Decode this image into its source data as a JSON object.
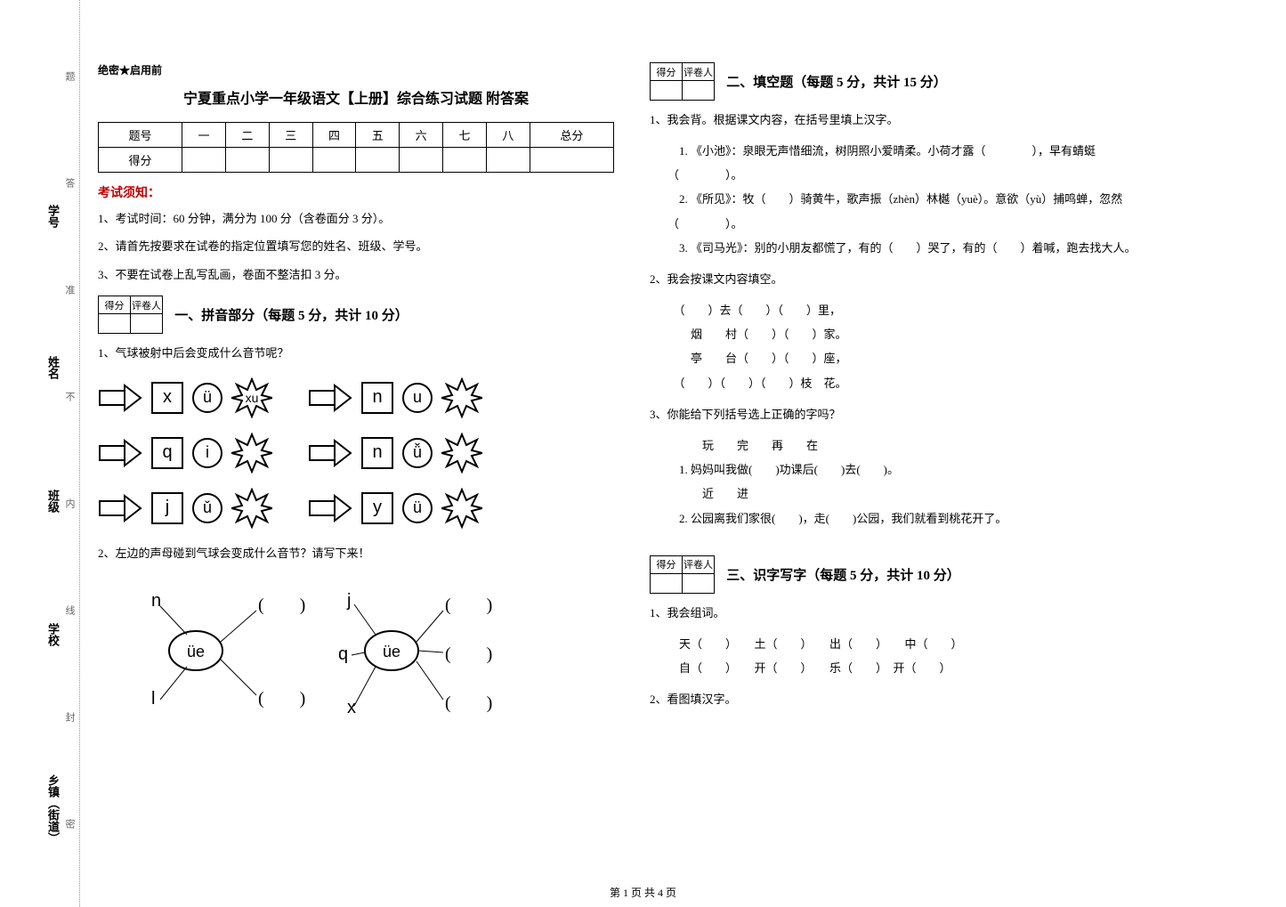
{
  "binding": {
    "labels": [
      "乡镇（街道）",
      "学校",
      "班级",
      "姓名",
      "学号"
    ],
    "hints": [
      "密",
      "封",
      "线",
      "内",
      "不",
      "准",
      "答",
      "题"
    ]
  },
  "secret": "绝密★启用前",
  "title": "宁夏重点小学一年级语文【上册】综合练习试题 附答案",
  "score_table": {
    "header": [
      "题号",
      "一",
      "二",
      "三",
      "四",
      "五",
      "六",
      "七",
      "八",
      "总分"
    ],
    "row_label": "得分"
  },
  "notice_head": "考试须知：",
  "notices": [
    "1、考试时间：60 分钟，满分为 100 分（含卷面分 3 分）。",
    "2、请首先按要求在试卷的指定位置填写您的姓名、班级、学号。",
    "3、不要在试卷上乱写乱画，卷面不整洁扣 3 分。"
  ],
  "scorebox_labels": [
    "得分",
    "评卷人"
  ],
  "sections": {
    "s1": {
      "title": "一、拼音部分（每题 5 分，共计 10 分）"
    },
    "s2": {
      "title": "二、填空题（每题 5 分，共计 15 分）"
    },
    "s3": {
      "title": "三、识字写字（每题 5 分，共计 10 分）"
    }
  },
  "s1": {
    "q1": "1、气球被射中后会变成什么音节呢？",
    "rows": [
      {
        "left": "x",
        "circle": "ü",
        "mid": "xu",
        "right_arrow_letter": "n",
        "right_circle": "u"
      },
      {
        "left": "q",
        "circle": "i",
        "mid": "",
        "right_arrow_letter": "n",
        "right_circle": "ǚ"
      },
      {
        "left": "j",
        "circle": "ǔ",
        "mid": "",
        "right_arrow_letter": "y",
        "right_circle": "ü"
      }
    ],
    "q2": "2、左边的声母碰到气球会变成什么音节？请写下来！",
    "d2": {
      "left_top": "n",
      "left_bot": "l",
      "left_circle": "üe",
      "right_top": "j",
      "right_mid": "q",
      "right_bot": "x",
      "right_circle": "üe"
    }
  },
  "s2": {
    "q1": "1、我会背。根据课文内容，在括号里填上汉字。",
    "q1_lines": [
      "　1. 《小池》：泉眼无声惜细流，树阴照小爱晴柔。小荷才露（　　　　），早有蜻蜓（　　　　）。",
      "　2. 《所见》：牧（　　）骑黄牛，歌声振（zhèn）林樾（yuè）。意欲（yù）捕鸣蝉，忽然（　　　　）。",
      "　3. 《司马光》：别的小朋友都慌了，有的（　　）哭了，有的（　　）着喊，跑去找大人。"
    ],
    "q2": "2、我会按课文内容填空。",
    "q2_lines": [
      "　（　　）去（　　）（　　）里，",
      "　　烟　　村（　　）（　　）家。",
      "　　亭　　台（　　）（　　）座，",
      "　（　　）（　　）（　　）枝　花。"
    ],
    "q3": "3、你能给下列括号选上正确的字吗？",
    "q3_lines": [
      "　　　玩　　完　　再　　在",
      "　1. 妈妈叫我做(　　)功课后(　　)去(　　)。",
      "　　　近　　进",
      "　2. 公园离我们家很(　　)，走(　　)公园，我们就看到桃花开了。"
    ]
  },
  "s3": {
    "q1": "1、我会组词。",
    "q1_lines": [
      "　天（　　）　　土（　　）　　出（　　）　　中（　　）",
      "　自（　　）　　开（　　）　　乐（　　）　开（　　）"
    ],
    "q2": "2、看图填汉字。"
  },
  "footer": "第 1 页 共 4 页"
}
